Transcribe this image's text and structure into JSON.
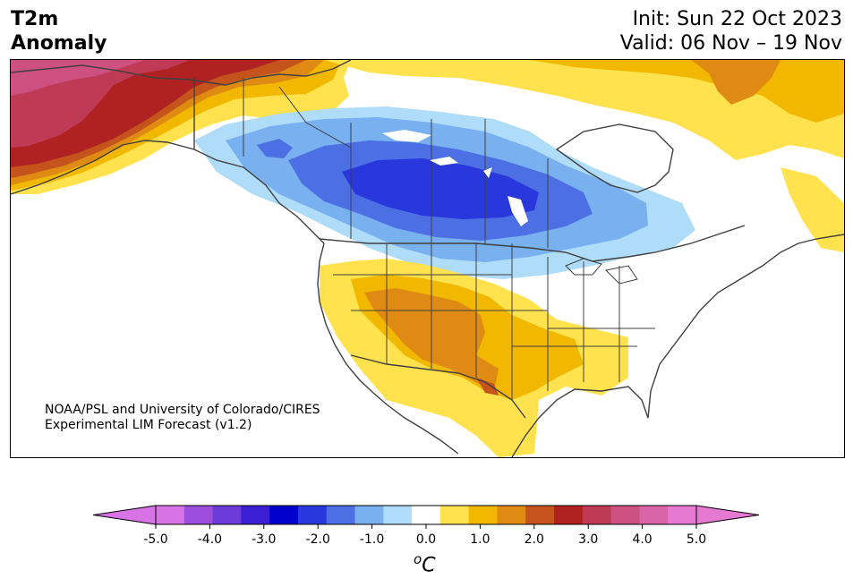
{
  "title": {
    "line1": "T2m",
    "line2": "Anomaly"
  },
  "init_text": "Init: Sun 22 Oct 2023",
  "valid_text": "Valid: 06 Nov – 19 Nov",
  "credit": {
    "line1": "NOAA/PSL and University of Colorado/CIRES",
    "line2": "Experimental LIM Forecast (v1.2)"
  },
  "colorbar": {
    "levels": [
      -5.0,
      -4.5,
      -4.0,
      -3.5,
      -3.0,
      -2.5,
      -2.0,
      -1.5,
      -1.0,
      -0.5,
      0.5,
      1.0,
      1.5,
      2.0,
      2.5,
      3.0,
      3.5,
      4.0,
      4.5,
      5.0
    ],
    "colors": [
      "#d873e6",
      "#9b4fdc",
      "#6d3bd8",
      "#3a20d2",
      "#0000cd",
      "#2838dc",
      "#4c70e4",
      "#78b0f0",
      "#afdcf8",
      "#ffffff",
      "#ffe24d",
      "#f2b800",
      "#df8a12",
      "#c4541c",
      "#b02222",
      "#be3a55",
      "#cc5080",
      "#d965a8",
      "#e67ad2"
    ],
    "under_color": "#d873e6",
    "over_color": "#e67ad2",
    "tick_labels": [
      "-5.0",
      "-4.0",
      "-3.0",
      "-2.0",
      "-1.0",
      "0.0",
      "1.0",
      "2.0",
      "3.0",
      "4.0",
      "5.0"
    ],
    "unit_sup": "o",
    "unit_main": "C"
  }
}
